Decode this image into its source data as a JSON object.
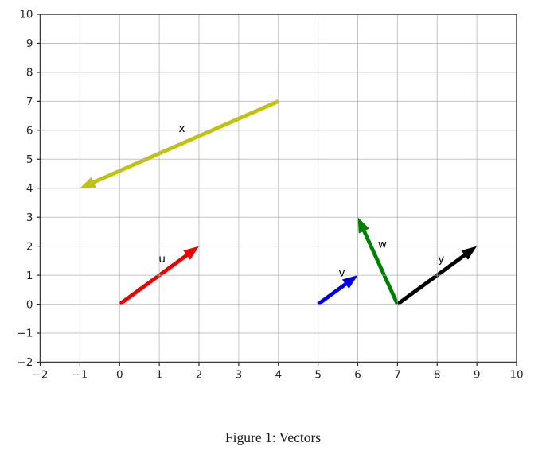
{
  "figure": {
    "caption": "Figure 1: Vectors"
  },
  "chart_data": {
    "type": "quiver",
    "title": "",
    "xlabel": "",
    "ylabel": "",
    "xlim": [
      -2,
      10
    ],
    "ylim": [
      -2,
      10
    ],
    "xticks": [
      -2,
      -1,
      0,
      1,
      2,
      3,
      4,
      5,
      6,
      7,
      8,
      9,
      10
    ],
    "yticks": [
      -2,
      -1,
      0,
      1,
      2,
      3,
      4,
      5,
      6,
      7,
      8,
      9,
      10
    ],
    "xtick_labels": [
      "−2",
      "−1",
      "0",
      "1",
      "2",
      "3",
      "4",
      "5",
      "6",
      "7",
      "8",
      "9",
      "10"
    ],
    "ytick_labels": [
      "−2",
      "−1",
      "0",
      "1",
      "2",
      "3",
      "4",
      "5",
      "6",
      "7",
      "8",
      "9",
      "10"
    ],
    "grid": true,
    "grid_color": "#b0b0b0",
    "spine_color": "#3c3c3c",
    "tick_color": "#262626",
    "label_color": "#000000",
    "legend": "none",
    "vectors": [
      {
        "label": "u",
        "from": [
          0,
          0
        ],
        "to": [
          2,
          2
        ],
        "color": "#ee0000",
        "label_pos": [
          1.07,
          1.57
        ]
      },
      {
        "label": "v",
        "from": [
          5,
          0
        ],
        "to": [
          6,
          1
        ],
        "color": "#0000ee",
        "label_pos": [
          5.6,
          1.08
        ]
      },
      {
        "label": "w",
        "from": [
          7,
          0
        ],
        "to": [
          6,
          3
        ],
        "color": "#008000",
        "label_pos": [
          6.62,
          2.07
        ]
      },
      {
        "label": "x",
        "from": [
          4,
          7
        ],
        "to": [
          -1,
          4
        ],
        "color": "#c2c20a",
        "label_pos": [
          1.57,
          6.07
        ]
      },
      {
        "label": "y",
        "from": [
          7,
          0
        ],
        "to": [
          9,
          2
        ],
        "color": "#000000",
        "label_pos": [
          8.1,
          1.57
        ]
      }
    ]
  }
}
